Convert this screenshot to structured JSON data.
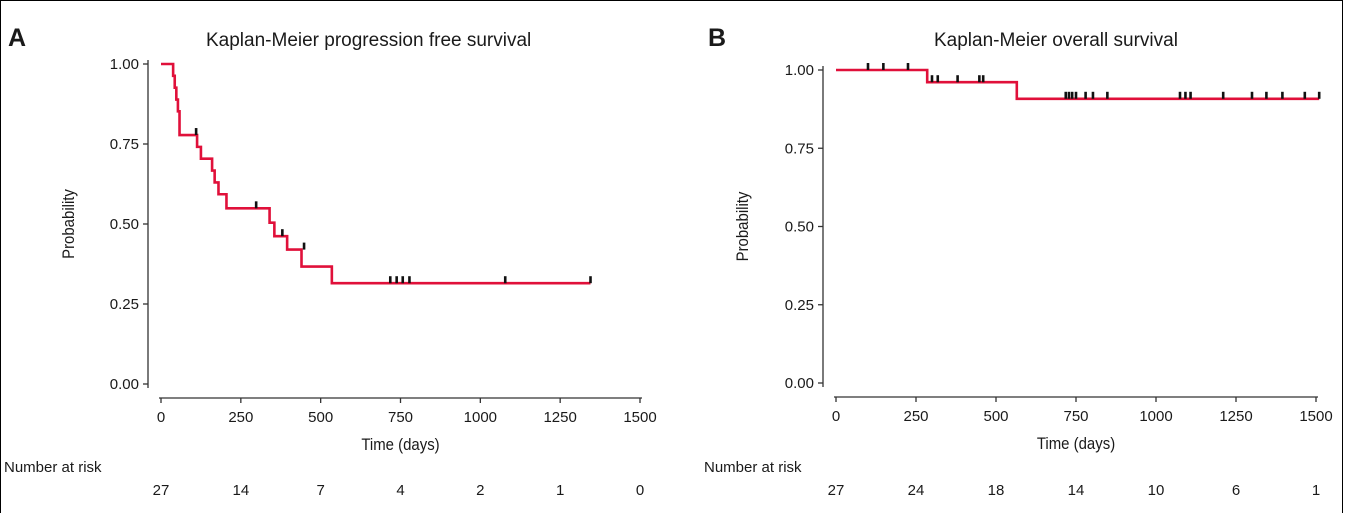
{
  "chart_data": [
    {
      "panel_label": "A",
      "type": "line",
      "title": "Kaplan-Meier progression free survival",
      "xlabel": "Time (days)",
      "ylabel": "Probability",
      "xlim": [
        0,
        1500
      ],
      "ylim": [
        0,
        1
      ],
      "xticks": [
        0,
        250,
        500,
        750,
        1000,
        1250,
        1500
      ],
      "yticks": [
        "0.00",
        "0.25",
        "0.50",
        "0.75",
        "1.00"
      ],
      "grid": false,
      "line_color": "#e0103a",
      "series": [
        {
          "step_x": [
            0,
            38,
            43,
            48,
            53,
            58,
            113,
            125,
            160,
            168,
            180,
            205,
            340,
            355,
            395,
            440,
            535,
            1345
          ],
          "step_y": [
            1.0,
            0.963,
            0.926,
            0.889,
            0.852,
            0.778,
            0.741,
            0.704,
            0.667,
            0.63,
            0.593,
            0.549,
            0.504,
            0.462,
            0.42,
            0.367,
            0.315,
            0.315
          ],
          "censor_x": [
            110,
            298,
            380,
            448,
            718,
            738,
            757,
            778,
            1078,
            1345
          ],
          "censor_y": [
            0.778,
            0.549,
            0.462,
            0.42,
            0.315,
            0.315,
            0.315,
            0.315,
            0.315,
            0.315
          ]
        }
      ],
      "risk_table": {
        "title": "Number at risk",
        "times": [
          0,
          250,
          500,
          750,
          1000,
          1250,
          1500
        ],
        "counts": [
          "27",
          "14",
          "7",
          "4",
          "2",
          "1",
          "0"
        ]
      }
    },
    {
      "panel_label": "B",
      "type": "line",
      "title": "Kaplan-Meier overall survival",
      "xlabel": "Time (days)",
      "ylabel": "Probability",
      "xlim": [
        0,
        1500
      ],
      "ylim": [
        0,
        1
      ],
      "xticks": [
        0,
        250,
        500,
        750,
        1000,
        1250,
        1500
      ],
      "yticks": [
        "0.00",
        "0.25",
        "0.50",
        "0.75",
        "1.00"
      ],
      "grid": false,
      "line_color": "#e0103a",
      "series": [
        {
          "step_x": [
            0,
            285,
            565,
            1510
          ],
          "step_y": [
            1.0,
            0.961,
            0.908,
            0.908
          ],
          "censor_x": [
            100,
            148,
            225,
            300,
            318,
            380,
            448,
            460,
            718,
            728,
            738,
            750,
            780,
            803,
            848,
            1075,
            1092,
            1108,
            1210,
            1300,
            1345,
            1395,
            1465,
            1510
          ],
          "censor_y": [
            1.0,
            1.0,
            1.0,
            0.961,
            0.961,
            0.961,
            0.961,
            0.961,
            0.908,
            0.908,
            0.908,
            0.908,
            0.908,
            0.908,
            0.908,
            0.908,
            0.908,
            0.908,
            0.908,
            0.908,
            0.908,
            0.908,
            0.908,
            0.908
          ]
        }
      ],
      "risk_table": {
        "title": "Number at risk",
        "times": [
          0,
          250,
          500,
          750,
          1000,
          1250,
          1500
        ],
        "counts": [
          "27",
          "24",
          "18",
          "14",
          "10",
          "6",
          "1"
        ]
      }
    }
  ]
}
